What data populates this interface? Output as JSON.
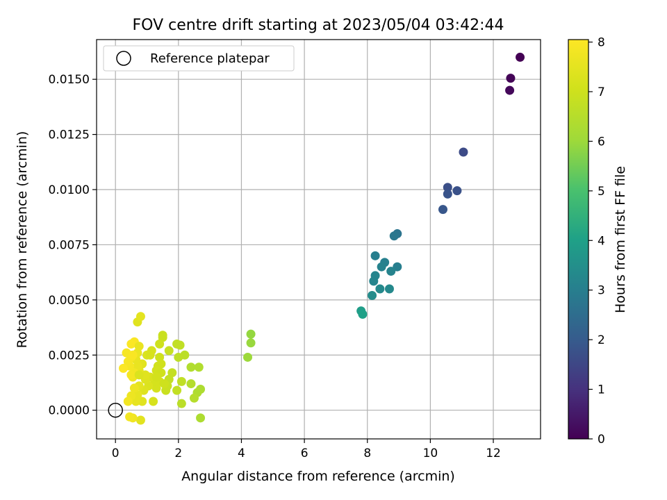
{
  "chart_data": {
    "type": "scatter",
    "title": "FOV centre drift starting at 2023/05/04 03:42:44",
    "xlabel": "Angular distance from reference (arcmin)",
    "ylabel": "Rotation from reference (arcmin)",
    "xlim": [
      -0.6,
      13.5
    ],
    "ylim": [
      -0.0013,
      0.0168
    ],
    "xticks": [
      0,
      2,
      4,
      6,
      8,
      10,
      12
    ],
    "xtick_labels": [
      "0",
      "2",
      "4",
      "6",
      "8",
      "10",
      "12"
    ],
    "yticks": [
      0.0,
      0.0025,
      0.005,
      0.0075,
      0.01,
      0.0125,
      0.015
    ],
    "ytick_labels": [
      "0.0000",
      "0.0025",
      "0.0050",
      "0.0075",
      "0.0100",
      "0.0125",
      "0.0150"
    ],
    "grid": true,
    "legend": {
      "position": "top-left",
      "entries": [
        "Reference platepar"
      ]
    },
    "reference_point": {
      "label": "Reference platepar",
      "x": 0,
      "y": 0
    },
    "colorbar": {
      "label": "Hours from first FF file",
      "range": [
        0,
        8.05
      ],
      "ticks": [
        0,
        1,
        2,
        3,
        4,
        5,
        6,
        7,
        8
      ],
      "tick_labels": [
        "0",
        "1",
        "2",
        "3",
        "4",
        "5",
        "6",
        "7",
        "8"
      ],
      "colormap": "viridis"
    },
    "points": [
      {
        "x": 12.85,
        "y": 0.016,
        "h": 0.0
      },
      {
        "x": 12.55,
        "y": 0.01505,
        "h": 0.08
      },
      {
        "x": 12.52,
        "y": 0.0145,
        "h": 0.15
      },
      {
        "x": 11.05,
        "y": 0.0117,
        "h": 1.6
      },
      {
        "x": 10.55,
        "y": 0.0101,
        "h": 1.7
      },
      {
        "x": 10.85,
        "y": 0.00995,
        "h": 1.75
      },
      {
        "x": 10.55,
        "y": 0.0098,
        "h": 1.8
      },
      {
        "x": 10.4,
        "y": 0.0091,
        "h": 1.9
      },
      {
        "x": 8.95,
        "y": 0.008,
        "h": 2.7
      },
      {
        "x": 8.85,
        "y": 0.0079,
        "h": 2.8
      },
      {
        "x": 8.25,
        "y": 0.007,
        "h": 3.0
      },
      {
        "x": 8.55,
        "y": 0.0067,
        "h": 3.05
      },
      {
        "x": 8.45,
        "y": 0.0065,
        "h": 3.1
      },
      {
        "x": 8.95,
        "y": 0.0065,
        "h": 3.0
      },
      {
        "x": 8.75,
        "y": 0.0063,
        "h": 3.15
      },
      {
        "x": 8.25,
        "y": 0.0061,
        "h": 3.2
      },
      {
        "x": 8.2,
        "y": 0.00585,
        "h": 3.2
      },
      {
        "x": 8.4,
        "y": 0.0055,
        "h": 3.3
      },
      {
        "x": 8.7,
        "y": 0.0055,
        "h": 3.3
      },
      {
        "x": 8.15,
        "y": 0.0052,
        "h": 3.4
      },
      {
        "x": 7.8,
        "y": 0.0045,
        "h": 3.9
      },
      {
        "x": 7.85,
        "y": 0.00435,
        "h": 4.0
      },
      {
        "x": 4.3,
        "y": 0.00345,
        "h": 5.9
      },
      {
        "x": 4.3,
        "y": 0.00305,
        "h": 5.95
      },
      {
        "x": 4.2,
        "y": 0.0024,
        "h": 6.0
      },
      {
        "x": 2.7,
        "y": -0.00035,
        "h": 6.3
      },
      {
        "x": 2.7,
        "y": 0.00095,
        "h": 6.3
      },
      {
        "x": 2.6,
        "y": 0.0008,
        "h": 6.35
      },
      {
        "x": 2.65,
        "y": 0.00195,
        "h": 6.4
      },
      {
        "x": 2.4,
        "y": 0.00195,
        "h": 6.4
      },
      {
        "x": 2.4,
        "y": 0.0012,
        "h": 6.45
      },
      {
        "x": 2.5,
        "y": 0.00055,
        "h": 6.5
      },
      {
        "x": 2.1,
        "y": 0.0003,
        "h": 6.6
      },
      {
        "x": 2.2,
        "y": 0.0025,
        "h": 6.6
      },
      {
        "x": 2.05,
        "y": 0.00295,
        "h": 6.7
      },
      {
        "x": 1.95,
        "y": 0.003,
        "h": 6.75
      },
      {
        "x": 2.0,
        "y": 0.0024,
        "h": 6.65
      },
      {
        "x": 2.1,
        "y": 0.0013,
        "h": 6.7
      },
      {
        "x": 1.95,
        "y": 0.0009,
        "h": 6.75
      },
      {
        "x": 1.8,
        "y": 0.0017,
        "h": 6.8
      },
      {
        "x": 1.7,
        "y": 0.0014,
        "h": 6.8
      },
      {
        "x": 1.65,
        "y": 0.0011,
        "h": 6.85
      },
      {
        "x": 1.6,
        "y": 0.0009,
        "h": 6.9
      },
      {
        "x": 1.7,
        "y": 0.0027,
        "h": 6.85
      },
      {
        "x": 1.5,
        "y": 0.0034,
        "h": 6.9
      },
      {
        "x": 1.5,
        "y": 0.0033,
        "h": 6.9
      },
      {
        "x": 1.4,
        "y": 0.003,
        "h": 7.0
      },
      {
        "x": 1.4,
        "y": 0.0024,
        "h": 7.0
      },
      {
        "x": 1.45,
        "y": 0.0021,
        "h": 7.05
      },
      {
        "x": 1.35,
        "y": 0.002,
        "h": 7.05
      },
      {
        "x": 1.3,
        "y": 0.0018,
        "h": 7.1
      },
      {
        "x": 1.45,
        "y": 0.0017,
        "h": 7.05
      },
      {
        "x": 1.4,
        "y": 0.0013,
        "h": 7.1
      },
      {
        "x": 1.55,
        "y": 0.0012,
        "h": 7.0
      },
      {
        "x": 1.3,
        "y": 0.001,
        "h": 7.15
      },
      {
        "x": 1.2,
        "y": 0.0004,
        "h": 7.2
      },
      {
        "x": 1.25,
        "y": 0.0013,
        "h": 7.15
      },
      {
        "x": 1.15,
        "y": 0.0027,
        "h": 7.2
      },
      {
        "x": 1.1,
        "y": 0.0015,
        "h": 7.25
      },
      {
        "x": 1.0,
        "y": 0.0025,
        "h": 7.3
      },
      {
        "x": 1.05,
        "y": 0.0011,
        "h": 7.3
      },
      {
        "x": 0.95,
        "y": 0.0014,
        "h": 7.35
      },
      {
        "x": 0.9,
        "y": 0.0009,
        "h": 7.35
      },
      {
        "x": 0.85,
        "y": 0.0004,
        "h": 7.4
      },
      {
        "x": 0.8,
        "y": -0.00045,
        "h": 7.45
      },
      {
        "x": 0.95,
        "y": 0.0016,
        "h": 7.4
      },
      {
        "x": 0.85,
        "y": 0.0021,
        "h": 7.45
      },
      {
        "x": 0.75,
        "y": 0.0018,
        "h": 7.5
      },
      {
        "x": 0.75,
        "y": 0.0011,
        "h": 7.5
      },
      {
        "x": 0.7,
        "y": 0.0007,
        "h": 7.55
      },
      {
        "x": 0.65,
        "y": 0.0004,
        "h": 7.55
      },
      {
        "x": 0.7,
        "y": 0.002,
        "h": 7.6
      },
      {
        "x": 0.65,
        "y": 0.0023,
        "h": 7.6
      },
      {
        "x": 0.7,
        "y": 0.0026,
        "h": 7.65
      },
      {
        "x": 0.6,
        "y": 0.001,
        "h": 7.7
      },
      {
        "x": 0.5,
        "y": 0.00065,
        "h": 7.7
      },
      {
        "x": 0.55,
        "y": -0.00035,
        "h": 7.75
      },
      {
        "x": 0.45,
        "y": -0.0003,
        "h": 7.8
      },
      {
        "x": 0.4,
        "y": 0.0004,
        "h": 7.8
      },
      {
        "x": 0.55,
        "y": 0.0015,
        "h": 7.75
      },
      {
        "x": 0.6,
        "y": 0.0017,
        "h": 7.8
      },
      {
        "x": 0.5,
        "y": 0.0016,
        "h": 7.85
      },
      {
        "x": 0.45,
        "y": 0.002,
        "h": 7.85
      },
      {
        "x": 0.4,
        "y": 0.0022,
        "h": 7.9
      },
      {
        "x": 0.35,
        "y": 0.0026,
        "h": 7.9
      },
      {
        "x": 0.5,
        "y": 0.0024,
        "h": 7.9
      },
      {
        "x": 0.55,
        "y": 0.0025,
        "h": 7.95
      },
      {
        "x": 0.25,
        "y": 0.0019,
        "h": 8.0
      },
      {
        "x": 0.6,
        "y": 0.0031,
        "h": 7.95
      },
      {
        "x": 0.5,
        "y": 0.003,
        "h": 8.0
      },
      {
        "x": 0.75,
        "y": 0.0029,
        "h": 7.6
      },
      {
        "x": 0.7,
        "y": 0.004,
        "h": 7.4
      },
      {
        "x": 0.8,
        "y": 0.00425,
        "h": 7.5
      },
      {
        "x": 1.1,
        "y": 0.0025,
        "h": 7.2
      },
      {
        "x": 0.75,
        "y": 0.0016,
        "h": 7.3
      },
      {
        "x": 1.3,
        "y": 0.0015,
        "h": 7.1
      }
    ]
  }
}
